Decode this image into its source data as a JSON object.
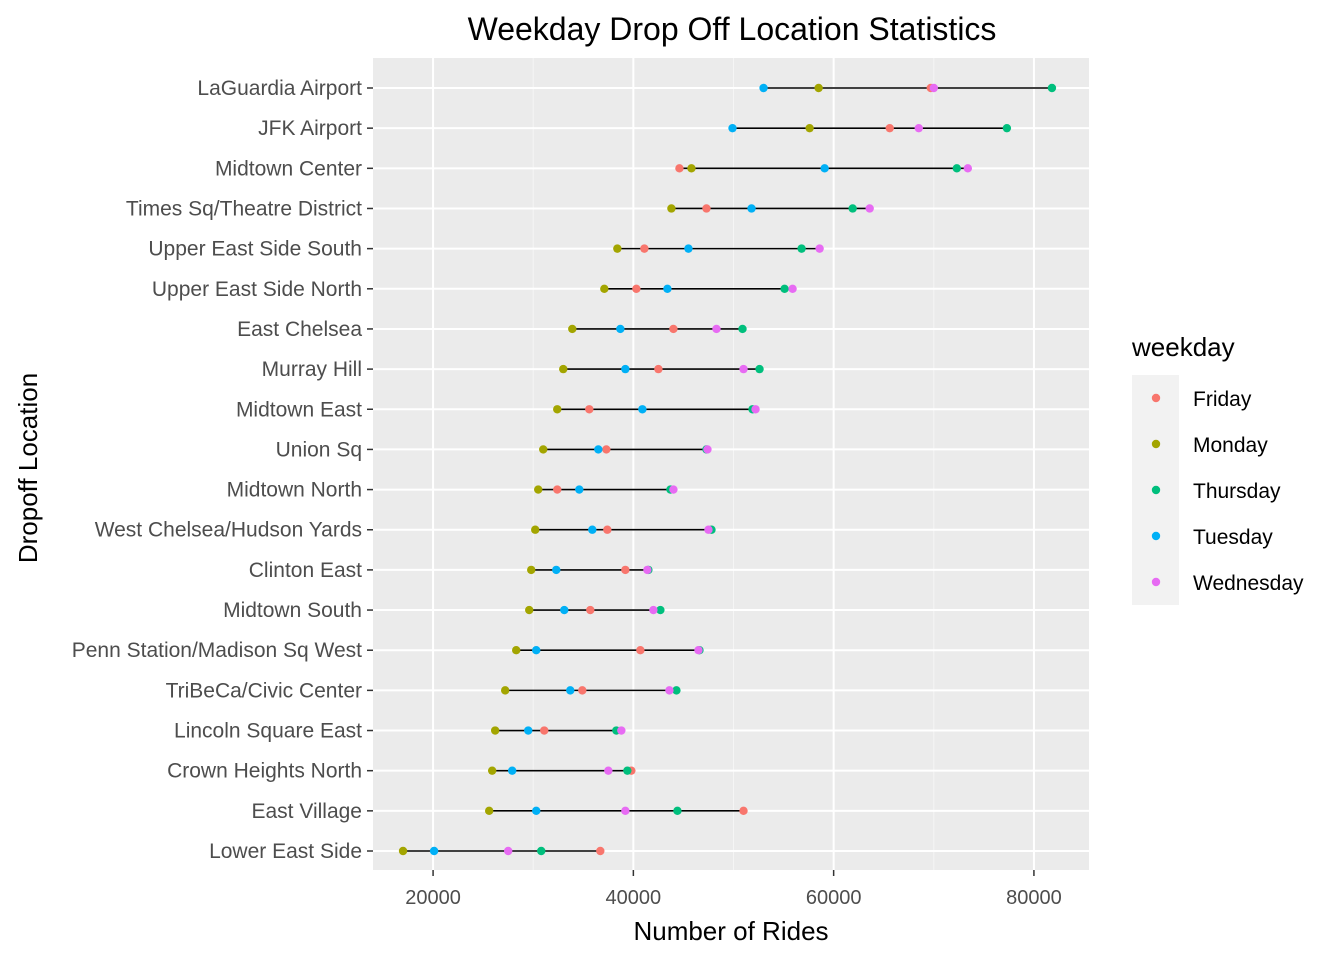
{
  "chart_data": {
    "type": "scatter",
    "title": "Weekday Drop Off Location Statistics",
    "xlabel": "Number of Rides",
    "ylabel": "Dropoff Location",
    "xlim": [
      14000,
      85500
    ],
    "xticks": [
      20000,
      40000,
      60000,
      80000
    ],
    "xtick_labels": [
      "20000",
      "40000",
      "60000",
      "80000"
    ],
    "grid": true,
    "legend": {
      "title": "weekday",
      "placement": "right"
    },
    "series": [
      {
        "name": "Friday",
        "color": "#F8766D"
      },
      {
        "name": "Monday",
        "color": "#A3A500"
      },
      {
        "name": "Thursday",
        "color": "#00BF7D"
      },
      {
        "name": "Tuesday",
        "color": "#00B0F6"
      },
      {
        "name": "Wednesday",
        "color": "#E76BF3"
      }
    ],
    "categories": [
      "LaGuardia Airport",
      "JFK Airport",
      "Midtown Center",
      "Times Sq/Theatre District",
      "Upper East Side South",
      "Upper East Side North",
      "East Chelsea",
      "Murray Hill",
      "Midtown East",
      "Union Sq",
      "Midtown North",
      "West Chelsea/Hudson Yards",
      "Clinton East",
      "Midtown South",
      "Penn Station/Madison Sq West",
      "TriBeCa/Civic Center",
      "Lincoln Square East",
      "Crown Heights North",
      "East Village",
      "Lower East Side"
    ],
    "values": [
      {
        "Friday": 69700,
        "Monday": 58500,
        "Thursday": 81800,
        "Tuesday": 53000,
        "Wednesday": 70000
      },
      {
        "Friday": 65600,
        "Monday": 57600,
        "Thursday": 77300,
        "Tuesday": 49900,
        "Wednesday": 68500
      },
      {
        "Friday": 44600,
        "Monday": 45800,
        "Thursday": 72300,
        "Tuesday": 59100,
        "Wednesday": 73400
      },
      {
        "Friday": 47300,
        "Monday": 43800,
        "Thursday": 61900,
        "Tuesday": 51800,
        "Wednesday": 63600
      },
      {
        "Friday": 41100,
        "Monday": 38400,
        "Thursday": 56800,
        "Tuesday": 45500,
        "Wednesday": 58600
      },
      {
        "Friday": 40300,
        "Monday": 37100,
        "Thursday": 55100,
        "Tuesday": 43400,
        "Wednesday": 55900
      },
      {
        "Friday": 44000,
        "Monday": 33900,
        "Thursday": 50900,
        "Tuesday": 38700,
        "Wednesday": 48300
      },
      {
        "Friday": 42500,
        "Monday": 33000,
        "Thursday": 52600,
        "Tuesday": 39200,
        "Wednesday": 51000
      },
      {
        "Friday": 35600,
        "Monday": 32400,
        "Thursday": 51900,
        "Tuesday": 40900,
        "Wednesday": 52200
      },
      {
        "Friday": 37300,
        "Monday": 31000,
        "Thursday": 47300,
        "Tuesday": 36500,
        "Wednesday": 47400
      },
      {
        "Friday": 32400,
        "Monday": 30500,
        "Thursday": 43700,
        "Tuesday": 34600,
        "Wednesday": 44000
      },
      {
        "Friday": 37400,
        "Monday": 30200,
        "Thursday": 47800,
        "Tuesday": 35900,
        "Wednesday": 47500
      },
      {
        "Friday": 39200,
        "Monday": 29800,
        "Thursday": 41500,
        "Tuesday": 32300,
        "Wednesday": 41400
      },
      {
        "Friday": 35700,
        "Monday": 29600,
        "Thursday": 42700,
        "Tuesday": 33100,
        "Wednesday": 42000
      },
      {
        "Friday": 40700,
        "Monday": 28300,
        "Thursday": 46600,
        "Tuesday": 30300,
        "Wednesday": 46500
      },
      {
        "Friday": 34900,
        "Monday": 27200,
        "Thursday": 44300,
        "Tuesday": 33700,
        "Wednesday": 43600
      },
      {
        "Friday": 31100,
        "Monday": 26200,
        "Thursday": 38300,
        "Tuesday": 29500,
        "Wednesday": 38800
      },
      {
        "Friday": 39800,
        "Monday": 25900,
        "Thursday": 39400,
        "Tuesday": 27900,
        "Wednesday": 37500
      },
      {
        "Friday": 51000,
        "Monday": 25600,
        "Thursday": 44400,
        "Tuesday": 30300,
        "Wednesday": 39200
      },
      {
        "Friday": 36700,
        "Monday": 17000,
        "Thursday": 30800,
        "Tuesday": 20100,
        "Wednesday": 27500
      }
    ]
  }
}
